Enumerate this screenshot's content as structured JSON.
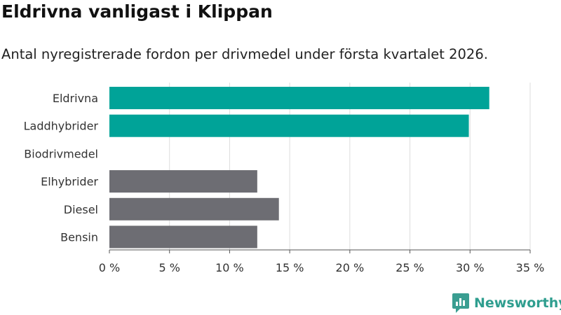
{
  "header": {
    "title": "Eldrivna vanligast i Klippan",
    "subtitle": "Antal nyregistrerade fordon per drivmedel under första kvartalet 2026."
  },
  "brand": {
    "name": "Newsworthy",
    "icon": "newsworthy-logo-icon",
    "color": "#3a9e91"
  },
  "chart_data": {
    "type": "bar",
    "orientation": "horizontal",
    "categories": [
      "Eldrivna",
      "Laddhybrider",
      "Biodrivmedel",
      "Elhybrider",
      "Diesel",
      "Bensin"
    ],
    "values": [
      31.6,
      29.9,
      0,
      12.3,
      14.1,
      12.3
    ],
    "bar_colors": [
      "#00a398",
      "#00a398",
      "#00a398",
      "#6d6d73",
      "#6d6d73",
      "#6d6d73"
    ],
    "xlim": [
      0,
      35
    ],
    "xticks": [
      0,
      5,
      10,
      15,
      20,
      25,
      30,
      35
    ],
    "tick_labels": [
      "0 %",
      "5 %",
      "10 %",
      "15 %",
      "20 %",
      "25 %",
      "30 %",
      "35 %"
    ],
    "grid": true,
    "xlabel": "",
    "ylabel": ""
  }
}
